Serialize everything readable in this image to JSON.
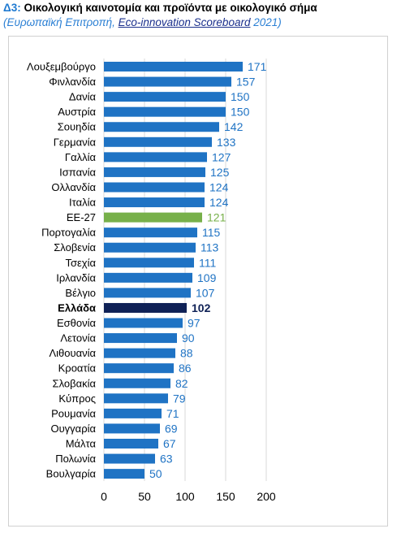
{
  "header": {
    "code": "Δ3:",
    "title": "Οικολογική καινοτομία και προϊόντα με οικολογικό σήμα",
    "source_open": "(Ευρωπαϊκή Επιτροπή, ",
    "source_link": "Eco-innovation Scoreboard",
    "source_close": " 2021)"
  },
  "colors": {
    "bar": "#1f73c4",
    "eu": "#77b04a",
    "greece": "#0f2156",
    "label_blue": "#1f73c4",
    "label_green": "#77b04a",
    "label_dark": "#0f2156",
    "grid": "#d9d9d9"
  },
  "chart_data": {
    "type": "bar",
    "orientation": "horizontal",
    "categories": [
      "Λουξεμβούργο",
      "Φινλανδία",
      "Δανία",
      "Αυστρία",
      "Σουηδία",
      "Γερμανία",
      "Γαλλία",
      "Ισπανία",
      "Ολλανδία",
      "Ιταλία",
      "ΕΕ-27",
      "Πορτογαλία",
      "Σλοβενία",
      "Τσεχία",
      "Ιρλανδία",
      "Βέλγιο",
      "Ελλάδα",
      "Εσθονία",
      "Λετονία",
      "Λιθουανία",
      "Κροατία",
      "Σλοβακία",
      "Κύπρος",
      "Ρουμανία",
      "Ουγγαρία",
      "Μάλτα",
      "Πολωνία",
      "Βουλγαρία"
    ],
    "values": [
      171,
      157,
      150,
      150,
      142,
      133,
      127,
      125,
      124,
      124,
      121,
      115,
      113,
      111,
      109,
      107,
      102,
      97,
      90,
      88,
      86,
      82,
      79,
      71,
      69,
      67,
      63,
      50
    ],
    "highlight": {
      "ΕΕ-27": "eu",
      "Ελλάδα": "greece"
    },
    "xlim": [
      0,
      200
    ],
    "xticks": [
      0,
      50,
      100,
      150,
      200
    ],
    "grid": "vertical",
    "data_labels": true
  }
}
